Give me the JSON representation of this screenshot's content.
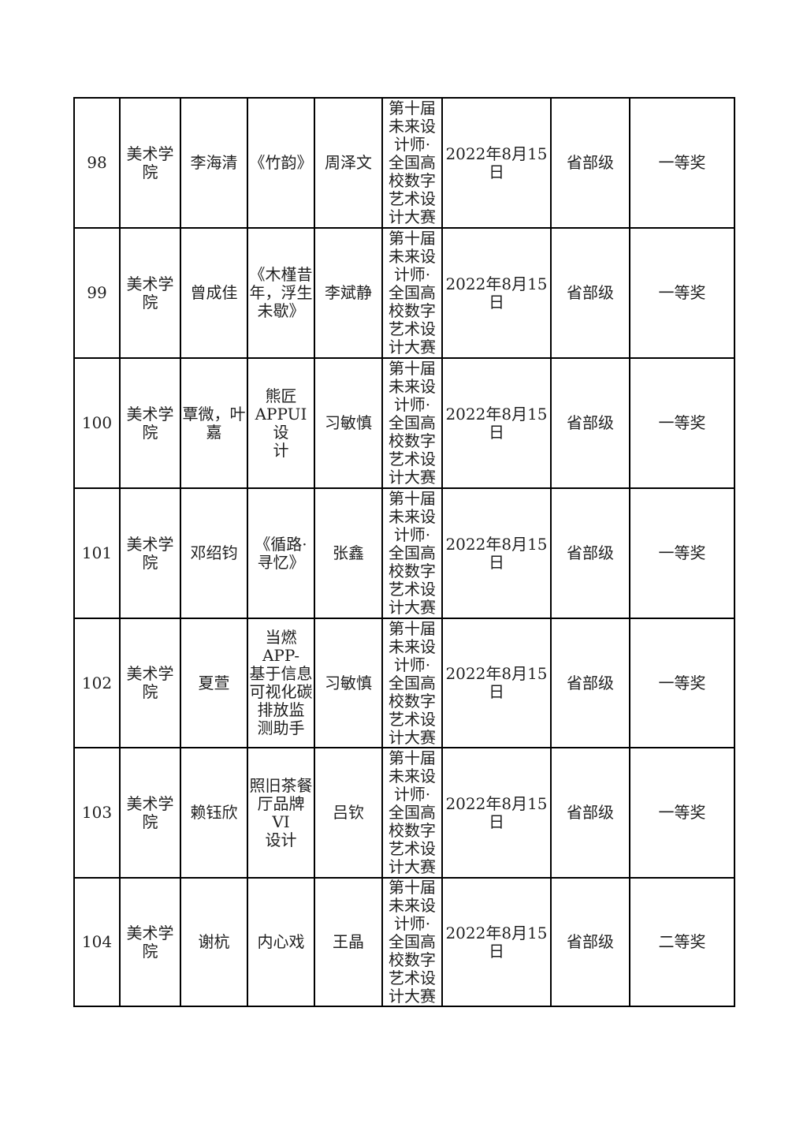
{
  "colors": {
    "page_background": "#ffffff",
    "text": "#1f1f1f",
    "table_border": "#000000"
  },
  "table": {
    "rows": [
      {
        "no": "98",
        "college": "美术学\n院",
        "students": "李海清",
        "work": "《竹韵》",
        "advisor": "周泽文",
        "competition": "第十届\n未来设\n计师·\n全国高\n校数字\n艺术设\n计大赛",
        "date": "2022年8月15日",
        "level": "省部级",
        "award": "一等奖"
      },
      {
        "no": "99",
        "college": "美术学\n院",
        "students": "曾成佳",
        "work": "《木槿昔\n年，浮生\n未歇》",
        "advisor": "李斌静",
        "competition": "第十届\n未来设\n计师·\n全国高\n校数字\n艺术设\n计大赛",
        "date": "2022年8月15日",
        "level": "省部级",
        "award": "一等奖"
      },
      {
        "no": "100",
        "college": "美术学\n院",
        "students": "覃微，叶\n嘉",
        "work": "熊匠\nAPPUI设\n计",
        "advisor": "习敏慎",
        "competition": "第十届\n未来设\n计师·\n全国高\n校数字\n艺术设\n计大赛",
        "date": "2022年8月15日",
        "level": "省部级",
        "award": "一等奖"
      },
      {
        "no": "101",
        "college": "美术学\n院",
        "students": "邓绍钧",
        "work": "《循路·\n寻忆》",
        "advisor": "张鑫",
        "competition": "第十届\n未来设\n计师·\n全国高\n校数字\n艺术设\n计大赛",
        "date": "2022年8月15日",
        "level": "省部级",
        "award": "一等奖"
      },
      {
        "no": "102",
        "college": "美术学\n院",
        "students": "夏萱",
        "work": "当燃APP-\n基于信息\n可视化碳\n排放监\n测助手",
        "advisor": "习敏慎",
        "competition": "第十届\n未来设\n计师·\n全国高\n校数字\n艺术设\n计大赛",
        "date": "2022年8月15日",
        "level": "省部级",
        "award": "一等奖"
      },
      {
        "no": "103",
        "college": "美术学\n院",
        "students": "赖钰欣",
        "work": "照旧茶餐\n厅品牌VI\n设计",
        "advisor": "吕钦",
        "competition": "第十届\n未来设\n计师·\n全国高\n校数字\n艺术设\n计大赛",
        "date": "2022年8月15日",
        "level": "省部级",
        "award": "一等奖"
      },
      {
        "no": "104",
        "college": "美术学\n院",
        "students": "谢杭",
        "work": "内心戏",
        "advisor": "王晶",
        "competition": "第十届\n未来设\n计师·\n全国高\n校数字\n艺术设\n计大赛",
        "date": "2022年8月15日",
        "level": "省部级",
        "award": "二等奖"
      }
    ]
  }
}
